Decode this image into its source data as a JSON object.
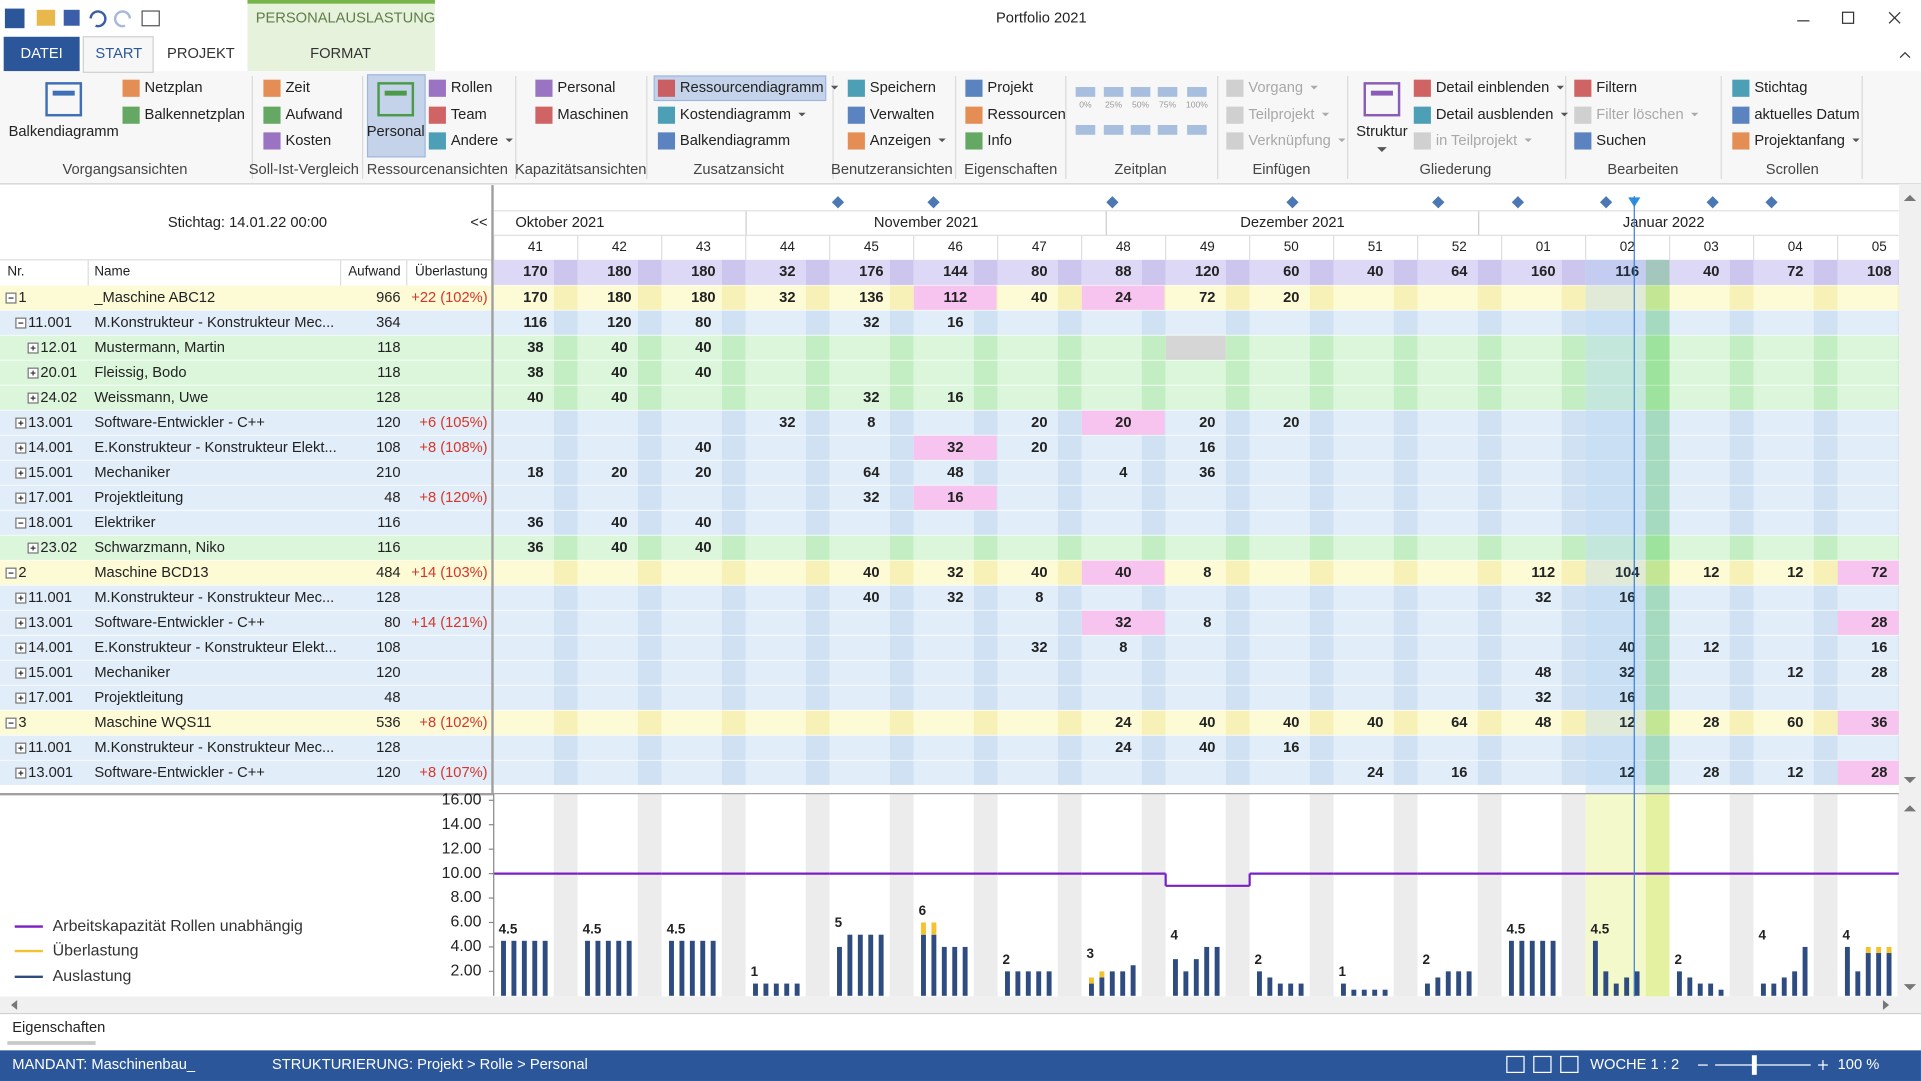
{
  "window": {
    "title": "Portfolio 2021",
    "context_tab": "PERSONALAUSLASTUNG"
  },
  "tabs": [
    "DATEI",
    "START",
    "PROJEKT",
    "FORMAT"
  ],
  "ribbon": {
    "groups": [
      {
        "label": "Vorgangsansichten",
        "items": [
          "Balkendiagramm",
          "Netzplan",
          "Balkennetzplan"
        ]
      },
      {
        "label": "Soll-Ist-Vergleich",
        "items": [
          "Zeit",
          "Aufwand",
          "Kosten"
        ]
      },
      {
        "label": "Ressourcenansichten",
        "items": [
          "Personal",
          "Rollen",
          "Team",
          "Andere"
        ]
      },
      {
        "label": "Kapazitätsansichten",
        "items": [
          "Personal",
          "Maschinen"
        ]
      },
      {
        "label": "Zusatzansicht",
        "items": [
          "Ressourcendiagramm",
          "Kostendiagramm",
          "Balkendiagramm"
        ]
      },
      {
        "label": "Benutzeransichten",
        "items": [
          "Speichern",
          "Verwalten",
          "Anzeigen"
        ]
      },
      {
        "label": "Eigenschaften",
        "items": [
          "Projekt",
          "Ressourcen",
          "Info"
        ]
      },
      {
        "label": "Zeitplan",
        "items": [
          "0%",
          "25%",
          "50%",
          "75%",
          "100%"
        ]
      },
      {
        "label": "Einfügen",
        "items": [
          "Vorgang",
          "Teilprojekt",
          "Verknüpfung"
        ]
      },
      {
        "label": "Gliederung",
        "items": [
          "Struktur",
          "Detail einblenden",
          "Detail ausblenden",
          "in Teilprojekt"
        ]
      },
      {
        "label": "Bearbeiten",
        "items": [
          "Filtern",
          "Filter löschen",
          "Suchen"
        ]
      },
      {
        "label": "Scrollen",
        "items": [
          "Stichtag",
          "aktuelles Datum",
          "Projektanfang"
        ]
      }
    ]
  },
  "grid": {
    "stichtag": "Stichtag: 14.01.22 00:00",
    "collapse": "<<",
    "columns": [
      "Nr.",
      "Name",
      "Aufwand",
      "Überlastung"
    ],
    "months": [
      "Oktober 2021",
      "November 2021",
      "Dezember 2021",
      "Januar 2022"
    ],
    "weeks": [
      "41",
      "42",
      "43",
      "44",
      "45",
      "46",
      "47",
      "48",
      "49",
      "50",
      "51",
      "52",
      "01",
      "02",
      "03",
      "04",
      "05"
    ],
    "current_week": "02",
    "totals": [
      170,
      180,
      180,
      32,
      176,
      144,
      80,
      88,
      120,
      60,
      40,
      64,
      160,
      116,
      40,
      72,
      108
    ],
    "rows": [
      {
        "kind": "group",
        "nr": "1",
        "name": "_Maschine ABC12",
        "aufwand": 966,
        "overload": "+22 (102%)",
        "expanded": true,
        "values": [
          170,
          180,
          180,
          32,
          136,
          112,
          40,
          24,
          72,
          20,
          null,
          null,
          null,
          null,
          null,
          null,
          null
        ],
        "over": [
          "46",
          "48"
        ]
      },
      {
        "kind": "role",
        "nr": "11.001",
        "name": "M.Konstrukteur - Konstrukteur Mec...",
        "aufwand": 364,
        "expanded": true,
        "values": [
          116,
          120,
          80,
          null,
          32,
          16,
          null,
          null,
          null,
          null,
          null,
          null,
          null,
          null,
          null,
          null,
          null
        ]
      },
      {
        "kind": "person",
        "nr": "12.01",
        "name": "Mustermann, Martin",
        "aufwand": 118,
        "values": [
          38,
          40,
          40,
          null,
          null,
          null,
          null,
          null,
          null,
          null,
          null,
          null,
          null,
          null,
          null,
          null,
          null
        ],
        "blocked": [
          "49"
        ]
      },
      {
        "kind": "person",
        "nr": "20.01",
        "name": "Fleissig, Bodo",
        "aufwand": 118,
        "values": [
          38,
          40,
          40,
          null,
          null,
          null,
          null,
          null,
          null,
          null,
          null,
          null,
          null,
          null,
          null,
          null,
          null
        ]
      },
      {
        "kind": "person",
        "nr": "24.02",
        "name": "Weissmann, Uwe",
        "aufwand": 128,
        "values": [
          40,
          40,
          null,
          null,
          32,
          16,
          null,
          null,
          null,
          null,
          null,
          null,
          null,
          null,
          null,
          null,
          null
        ]
      },
      {
        "kind": "role",
        "nr": "13.001",
        "name": "Software-Entwickler - C++",
        "aufwand": 120,
        "overload": "+6 (105%)",
        "values": [
          null,
          null,
          null,
          32,
          8,
          null,
          20,
          20,
          20,
          20,
          null,
          null,
          null,
          null,
          null,
          null,
          null
        ],
        "over": [
          "48"
        ]
      },
      {
        "kind": "role",
        "nr": "14.001",
        "name": "E.Konstrukteur - Konstrukteur Elekt...",
        "aufwand": 108,
        "overload": "+8 (108%)",
        "values": [
          null,
          null,
          40,
          null,
          null,
          32,
          20,
          null,
          16,
          null,
          null,
          null,
          null,
          null,
          null,
          null,
          null
        ],
        "over": [
          "46"
        ]
      },
      {
        "kind": "role",
        "nr": "15.001",
        "name": "Mechaniker",
        "aufwand": 210,
        "values": [
          18,
          20,
          20,
          null,
          64,
          48,
          null,
          4,
          36,
          null,
          null,
          null,
          null,
          null,
          null,
          null,
          null
        ]
      },
      {
        "kind": "role",
        "nr": "17.001",
        "name": "Projektleitung",
        "aufwand": 48,
        "overload": "+8 (120%)",
        "values": [
          null,
          null,
          null,
          null,
          32,
          16,
          null,
          null,
          null,
          null,
          null,
          null,
          null,
          null,
          null,
          null,
          null
        ],
        "over": [
          "46"
        ]
      },
      {
        "kind": "role",
        "nr": "18.001",
        "name": "Elektriker",
        "aufwand": 116,
        "expanded": true,
        "values": [
          36,
          40,
          40,
          null,
          null,
          null,
          null,
          null,
          null,
          null,
          null,
          null,
          null,
          null,
          null,
          null,
          null
        ]
      },
      {
        "kind": "person",
        "nr": "23.02",
        "name": "Schwarzmann, Niko",
        "aufwand": 116,
        "values": [
          36,
          40,
          40,
          null,
          null,
          null,
          null,
          null,
          null,
          null,
          null,
          null,
          null,
          null,
          null,
          null,
          null
        ]
      },
      {
        "kind": "group",
        "nr": "2",
        "name": "Maschine BCD13",
        "aufwand": 484,
        "overload": "+14 (103%)",
        "expanded": true,
        "values": [
          null,
          null,
          null,
          null,
          40,
          32,
          40,
          40,
          8,
          null,
          null,
          null,
          112,
          104,
          12,
          12,
          72
        ],
        "over": [
          "48",
          "05"
        ]
      },
      {
        "kind": "role",
        "nr": "11.001",
        "name": "M.Konstrukteur - Konstrukteur Mec...",
        "aufwand": 128,
        "values": [
          null,
          null,
          null,
          null,
          40,
          32,
          8,
          null,
          null,
          null,
          null,
          null,
          32,
          16,
          null,
          null,
          null
        ]
      },
      {
        "kind": "role",
        "nr": "13.001",
        "name": "Software-Entwickler - C++",
        "aufwand": 80,
        "overload": "+14 (121%)",
        "values": [
          null,
          null,
          null,
          null,
          null,
          null,
          null,
          32,
          8,
          null,
          null,
          null,
          null,
          null,
          null,
          null,
          28
        ],
        "over": [
          "48",
          "05"
        ]
      },
      {
        "kind": "role",
        "nr": "14.001",
        "name": "E.Konstrukteur - Konstrukteur Elekt...",
        "aufwand": 108,
        "values": [
          null,
          null,
          null,
          null,
          null,
          null,
          32,
          8,
          null,
          null,
          null,
          null,
          null,
          40,
          12,
          null,
          16
        ]
      },
      {
        "kind": "role",
        "nr": "15.001",
        "name": "Mechaniker",
        "aufwand": 120,
        "values": [
          null,
          null,
          null,
          null,
          null,
          null,
          null,
          null,
          null,
          null,
          null,
          null,
          48,
          32,
          null,
          12,
          28
        ]
      },
      {
        "kind": "role",
        "nr": "17.001",
        "name": "Projektleitung",
        "aufwand": 48,
        "values": [
          null,
          null,
          null,
          null,
          null,
          null,
          null,
          null,
          null,
          null,
          null,
          null,
          32,
          16,
          null,
          null,
          null
        ]
      },
      {
        "kind": "group",
        "nr": "3",
        "name": "Maschine WQS11",
        "aufwand": 536,
        "overload": "+8 (102%)",
        "expanded": true,
        "values": [
          null,
          null,
          null,
          null,
          null,
          null,
          null,
          24,
          40,
          40,
          40,
          64,
          48,
          12,
          28,
          60,
          36
        ],
        "over": [
          "05"
        ]
      },
      {
        "kind": "role",
        "nr": "11.001",
        "name": "M.Konstrukteur - Konstrukteur Mec...",
        "aufwand": 128,
        "values": [
          null,
          null,
          null,
          null,
          null,
          null,
          null,
          24,
          40,
          16,
          null,
          null,
          null,
          null,
          null,
          null,
          null
        ]
      },
      {
        "kind": "role",
        "nr": "13.001",
        "name": "Software-Entwickler - C++",
        "aufwand": 120,
        "overload": "+8 (107%)",
        "values": [
          null,
          null,
          null,
          null,
          null,
          null,
          null,
          null,
          null,
          null,
          24,
          16,
          null,
          12,
          28,
          12,
          28
        ],
        "over": [
          "05"
        ]
      }
    ]
  },
  "chart_data": {
    "type": "bar",
    "ylim": [
      0,
      16.5
    ],
    "yticks": [
      {
        "value": 16,
        "label": "16.00"
      },
      {
        "value": 14,
        "label": "14.00"
      },
      {
        "value": 12,
        "label": "12.00"
      },
      {
        "value": 10,
        "label": "10.00"
      },
      {
        "value": 8,
        "label": "8.00"
      },
      {
        "value": 6,
        "label": "6.00"
      },
      {
        "value": 4,
        "label": "4.00"
      },
      {
        "value": 2,
        "label": "2.00"
      }
    ],
    "series": [
      {
        "name": "Arbeitskapazität Rollen unabhängig",
        "type": "line",
        "color": "#7a1fc4",
        "values": [
          10,
          10,
          10,
          10,
          10,
          10,
          10,
          10,
          9,
          10,
          10,
          10,
          10,
          10,
          10,
          10,
          10
        ]
      },
      {
        "name": "Überlastung",
        "color": "#f2c230",
        "values": [
          [
            0,
            0,
            0,
            0,
            0
          ],
          [
            0,
            0,
            0,
            0,
            0
          ],
          [
            0,
            0,
            0,
            0,
            0
          ],
          [
            0,
            0,
            0,
            0,
            0
          ],
          [
            0,
            0,
            0,
            0,
            0
          ],
          [
            1,
            1,
            0,
            0,
            0
          ],
          [
            0,
            0,
            0,
            0,
            0
          ],
          [
            0.5,
            0.5,
            0,
            0,
            0
          ],
          [
            0,
            0,
            0,
            0,
            0
          ],
          [
            0,
            0,
            0,
            0,
            0
          ],
          [
            0,
            0,
            0,
            0,
            0
          ],
          [
            0,
            0,
            0,
            0,
            0
          ],
          [
            0,
            0,
            0,
            0,
            0
          ],
          [
            0,
            0,
            0,
            0,
            0
          ],
          [
            0,
            0,
            0,
            0,
            0
          ],
          [
            0,
            0,
            0,
            0,
            0
          ],
          [
            0,
            0,
            0.5,
            0.5,
            0.5
          ]
        ]
      },
      {
        "name": "Auslastung",
        "color": "#2f4c80",
        "values": [
          [
            4.5,
            4.5,
            4.5,
            4.5,
            4.5
          ],
          [
            4.5,
            4.5,
            4.5,
            4.5,
            4.5
          ],
          [
            4.5,
            4.5,
            4.5,
            4.5,
            4.5
          ],
          [
            1,
            1,
            1,
            1,
            1
          ],
          [
            4,
            5,
            5,
            5,
            5
          ],
          [
            5,
            5,
            4,
            4,
            4
          ],
          [
            2,
            2,
            2,
            2,
            2
          ],
          [
            1,
            1.5,
            2,
            2,
            2.5
          ],
          [
            3,
            2,
            3,
            4,
            4
          ],
          [
            2,
            1.5,
            1,
            1,
            1
          ],
          [
            1,
            0.5,
            0.5,
            0.5,
            0.5
          ],
          [
            1,
            1.5,
            2,
            2,
            2
          ],
          [
            4.5,
            4.5,
            4.5,
            4.5,
            4.5
          ],
          [
            4.5,
            2,
            1,
            1.5,
            2
          ],
          [
            2,
            1.5,
            1,
            1,
            0.5
          ],
          [
            1,
            1,
            1.5,
            2,
            4
          ],
          [
            4,
            2,
            3.5,
            3.5,
            3.5
          ]
        ]
      }
    ],
    "group_labels": [
      4.5,
      4.5,
      4.5,
      1,
      5,
      6,
      2,
      3,
      4,
      2,
      1,
      2,
      4.5,
      4.5,
      2,
      4,
      4
    ]
  },
  "panel": {
    "title": "Eigenschaften"
  },
  "status": {
    "mandant": "MANDANT: Maschinenbau_",
    "struktur": "STRUKTURIERUNG: Projekt > Rolle > Personal",
    "woche": "WOCHE 1 : 2",
    "zoom": "100 %"
  }
}
